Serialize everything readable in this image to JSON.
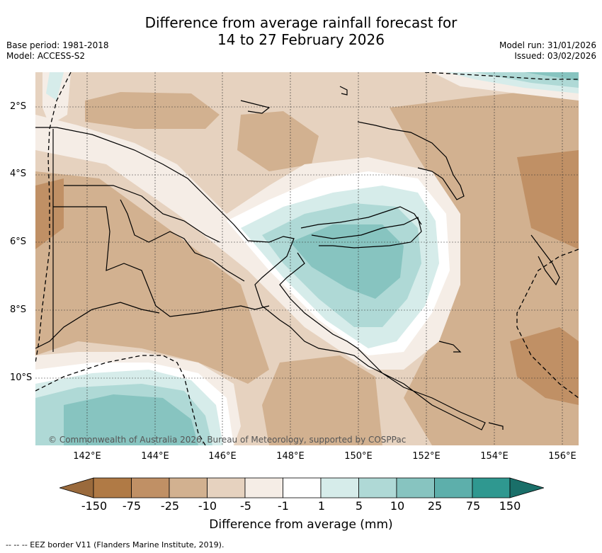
{
  "header": {
    "title_line1": "Difference from average rainfall forecast for",
    "title_line2": "14 to 27 February 2026",
    "base_period": "Base period: 1981-2018",
    "model": "Model: ACCESS-S2",
    "model_run": "Model run: 31/01/2026",
    "issued": "Issued: 03/02/2026"
  },
  "map": {
    "lat_labels": [
      "2°S",
      "4°S",
      "6°S",
      "8°S",
      "10°S"
    ],
    "lon_labels": [
      "142°E",
      "144°E",
      "146°E",
      "148°E",
      "150°E",
      "152°E",
      "154°E",
      "156°E"
    ],
    "copyright": "© Commonwealth of Australia 2026, Bureau of Meteorology, supported by COSPPac"
  },
  "colorbar": {
    "ticks": [
      "-150",
      "-75",
      "-25",
      "-10",
      "-5",
      "-1",
      "1",
      "5",
      "10",
      "25",
      "75",
      "150"
    ],
    "colors": [
      "#9a6a3c",
      "#b07a45",
      "#c09065",
      "#d2b190",
      "#e6d2bf",
      "#f5ede6",
      "#ffffff",
      "#d6ecea",
      "#afd9d6",
      "#87c4c0",
      "#5dafab",
      "#2f9890",
      "#1a6f69"
    ],
    "label": "Difference from average (mm)"
  },
  "legend": {
    "eez": "--  --  -- EEZ border V11 (Flanders Marine Institute, 2019)."
  }
}
